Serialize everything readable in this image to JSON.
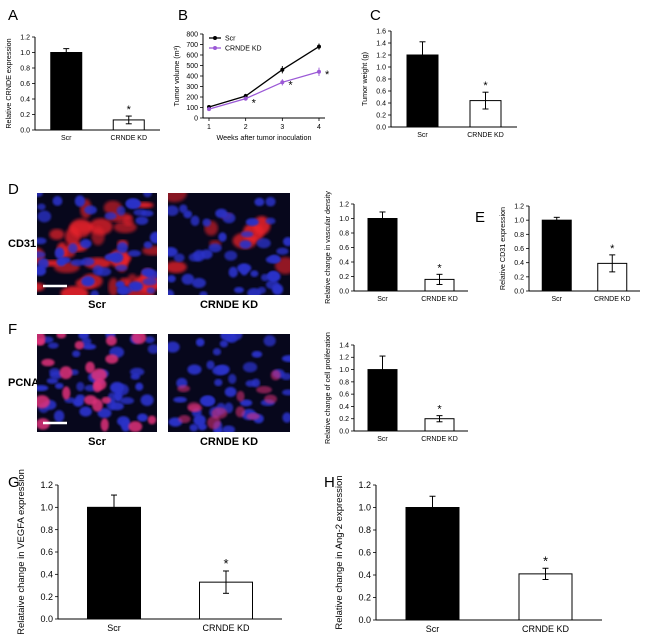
{
  "figure": {
    "panel_letters": [
      "A",
      "B",
      "C",
      "D",
      "E",
      "F",
      "G",
      "H"
    ],
    "row_labels": [
      "CD31",
      "PCNA"
    ]
  },
  "micrographs": [
    {
      "panel": "D",
      "label": "Scr",
      "row": "CD31",
      "stain": "red-membrane",
      "density": "high"
    },
    {
      "panel": "D",
      "label": "CRNDE KD",
      "row": "CD31",
      "stain": "red-membrane",
      "density": "low"
    },
    {
      "panel": "F",
      "label": "Scr",
      "row": "PCNA",
      "stain": "magenta-nuclear",
      "density": "high"
    },
    {
      "panel": "F",
      "label": "CRNDE KD",
      "row": "PCNA",
      "stain": "magenta-nuclear",
      "density": "low"
    }
  ],
  "colors": {
    "scr_bar": "#000000",
    "kd_bar": "#ffffff",
    "line_scr": "#000000",
    "line_kd": "#9b59d6",
    "cd31_red": "#e8202a",
    "nuclei_blue": "#2a33c8",
    "pcna_magenta": "#e0307a"
  },
  "chart_data": [
    {
      "id": "A",
      "type": "bar",
      "categories": [
        "Scr",
        "CRNDE KD"
      ],
      "values": [
        1.0,
        0.13
      ],
      "errors": [
        0.05,
        0.05
      ],
      "ylabel": "Relative CRNDE expression",
      "ylim": [
        0,
        1.2
      ],
      "yticks": [
        "0.0",
        "0.2",
        "0.4",
        "0.6",
        "0.8",
        "1.0",
        "1.2"
      ],
      "annotations": [
        {
          "category": "CRNDE KD",
          "text": "*"
        }
      ]
    },
    {
      "id": "B",
      "type": "line",
      "x": [
        1,
        2,
        3,
        4
      ],
      "xticks": [
        "1",
        "2",
        "3",
        "4"
      ],
      "series": [
        {
          "name": "Scr",
          "values": [
            105,
            210,
            460,
            680
          ],
          "errors": [
            15,
            20,
            35,
            30
          ]
        },
        {
          "name": "CRNDE KD",
          "values": [
            85,
            185,
            340,
            440
          ],
          "errors": [
            15,
            20,
            30,
            40
          ]
        }
      ],
      "xlabel": "Weeks after tumor inoculation",
      "ylabel": "Tumor volume (m³)",
      "ylim": [
        0,
        800
      ],
      "yticks": [
        "0",
        "100",
        "200",
        "300",
        "400",
        "500",
        "600",
        "700",
        "800"
      ],
      "annotations": [
        {
          "x": 2,
          "text": "*"
        },
        {
          "x": 3,
          "text": "*"
        },
        {
          "x": 4,
          "text": "*"
        }
      ]
    },
    {
      "id": "C",
      "type": "bar",
      "categories": [
        "Scr",
        "CRNDE KD"
      ],
      "values": [
        1.2,
        0.44
      ],
      "errors": [
        0.22,
        0.14
      ],
      "ylabel": "Tumor weight (g)",
      "ylim": [
        0,
        1.6
      ],
      "yticks": [
        "0.0",
        "0.2",
        "0.4",
        "0.6",
        "0.8",
        "1.0",
        "1.2",
        "1.4",
        "1.6"
      ],
      "annotations": [
        {
          "category": "CRNDE KD",
          "text": "*"
        }
      ]
    },
    {
      "id": "D",
      "type": "bar",
      "categories": [
        "Scr",
        "CRNDE KD"
      ],
      "values": [
        1.0,
        0.16
      ],
      "errors": [
        0.09,
        0.07
      ],
      "ylabel": "Relative change in vascular density",
      "ylim": [
        0,
        1.2
      ],
      "yticks": [
        "0.0",
        "0.2",
        "0.4",
        "0.6",
        "0.8",
        "1.0",
        "1.2"
      ],
      "annotations": [
        {
          "category": "CRNDE KD",
          "text": "*"
        }
      ]
    },
    {
      "id": "E",
      "type": "bar",
      "categories": [
        "Scr",
        "CRNDE KD"
      ],
      "values": [
        1.0,
        0.39
      ],
      "errors": [
        0.04,
        0.12
      ],
      "ylabel": "Relative  CD31 expression",
      "ylim": [
        0,
        1.2
      ],
      "yticks": [
        "0.0",
        "0.2",
        "0.4",
        "0.6",
        "0.8",
        "1.0",
        "1.2"
      ],
      "annotations": [
        {
          "category": "CRNDE KD",
          "text": "*"
        }
      ]
    },
    {
      "id": "F",
      "type": "bar",
      "categories": [
        "Scr",
        "CRNDE KD"
      ],
      "values": [
        1.0,
        0.2
      ],
      "errors": [
        0.22,
        0.05
      ],
      "ylabel": "Relative change of cell proliferation",
      "ylim": [
        0,
        1.4
      ],
      "yticks": [
        "0.0",
        "0.2",
        "0.4",
        "0.6",
        "0.8",
        "1.0",
        "1.2",
        "1.4"
      ],
      "annotations": [
        {
          "category": "CRNDE KD",
          "text": "*"
        }
      ]
    },
    {
      "id": "G",
      "type": "bar",
      "categories": [
        "Scr",
        "CRNDE KD"
      ],
      "values": [
        1.0,
        0.33
      ],
      "errors": [
        0.11,
        0.1
      ],
      "ylabel": "Relataive change in VEGFA expression",
      "ylim": [
        0,
        1.2
      ],
      "yticks": [
        "0.0",
        "0.2",
        "0.4",
        "0.6",
        "0.8",
        "1.0",
        "1.2"
      ],
      "annotations": [
        {
          "category": "CRNDE KD",
          "text": "*"
        }
      ]
    },
    {
      "id": "H",
      "type": "bar",
      "categories": [
        "Scr",
        "CRNDE KD"
      ],
      "values": [
        1.0,
        0.41
      ],
      "errors": [
        0.1,
        0.05
      ],
      "ylabel": "Relative change in Ang-2 expression",
      "ylim": [
        0,
        1.2
      ],
      "yticks": [
        "0.0",
        "0.2",
        "0.4",
        "0.6",
        "0.8",
        "1.0",
        "1.2"
      ],
      "annotations": [
        {
          "category": "CRNDE KD",
          "text": "*"
        }
      ]
    }
  ]
}
